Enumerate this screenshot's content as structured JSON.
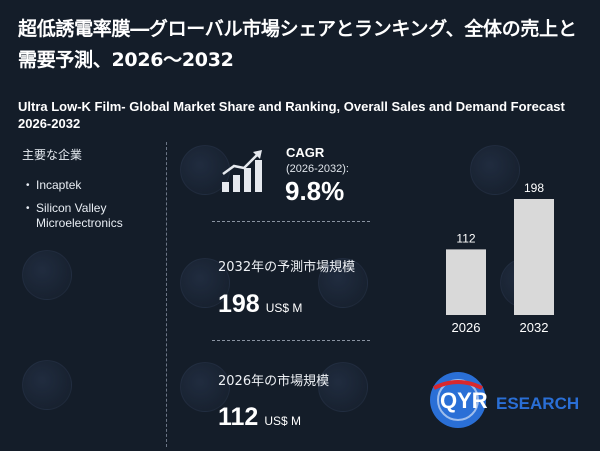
{
  "title_jp": "超低誘電率膜―グローバル市場シェアとランキング、全体の売上と需要予測、2026～2032",
  "title_en": "Ultra Low-K Film- Global Market Share and Ranking, Overall Sales and Demand Forecast 2026-2032",
  "companies": {
    "heading": "主要な企業",
    "items": [
      "Incaptek",
      "Silicon Valley Microelectronics"
    ]
  },
  "cagr": {
    "label": "CAGR",
    "period": "(2026-2032):",
    "value": "9.8%"
  },
  "forecast_2032": {
    "label": "2032年の予測市場規模",
    "value": "198",
    "unit": "US$ M"
  },
  "market_2026": {
    "label": "2026年の市場規模",
    "value": "112",
    "unit": "US$ M"
  },
  "logo": {
    "text_qyr": "QYR",
    "text_research": "ESEARCH"
  },
  "colors": {
    "background": "#141d29",
    "bar": "#d9d9d9",
    "logo_blue": "#2a6fd6",
    "logo_red": "#d8282f"
  },
  "icons": [
    "growth-chart-icon",
    "qyresearch-logo"
  ],
  "chart_data": {
    "type": "bar",
    "categories": [
      "2026",
      "2032"
    ],
    "values": [
      112,
      198
    ],
    "title": "",
    "xlabel": "",
    "ylabel": "",
    "ylim": [
      0,
      198
    ],
    "grid": false,
    "legend": "none"
  }
}
